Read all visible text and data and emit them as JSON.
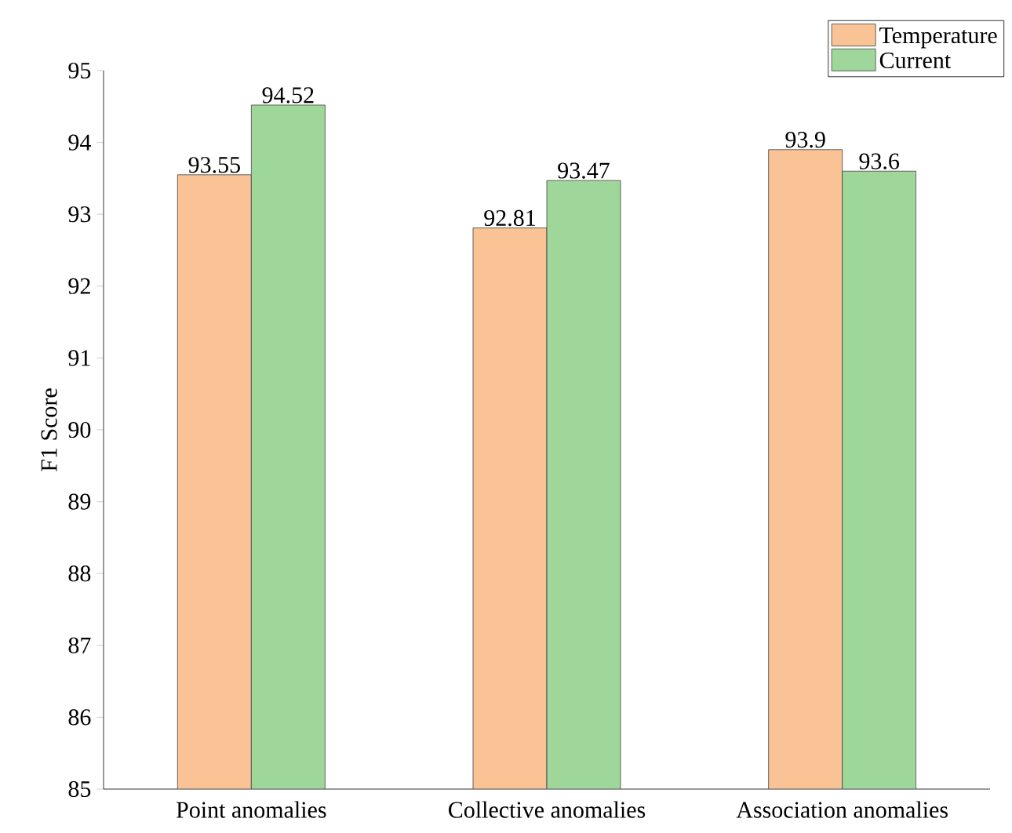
{
  "chart_data": {
    "type": "bar",
    "ylabel": "F1 Score",
    "categories": [
      "Point anomalies",
      "Collective anomalies",
      "Association anomalies"
    ],
    "series": [
      {
        "name": "Temperature",
        "color": "#f9c395",
        "values": [
          93.55,
          92.81,
          93.9
        ]
      },
      {
        "name": "Current",
        "color": "#9fd79b",
        "values": [
          94.52,
          93.47,
          93.6
        ]
      }
    ],
    "ylim": [
      85,
      95
    ],
    "yticks": [
      85,
      86,
      87,
      88,
      89,
      90,
      91,
      92,
      93,
      94,
      95
    ],
    "data_labels": true,
    "legend": "top right",
    "grid": false
  }
}
